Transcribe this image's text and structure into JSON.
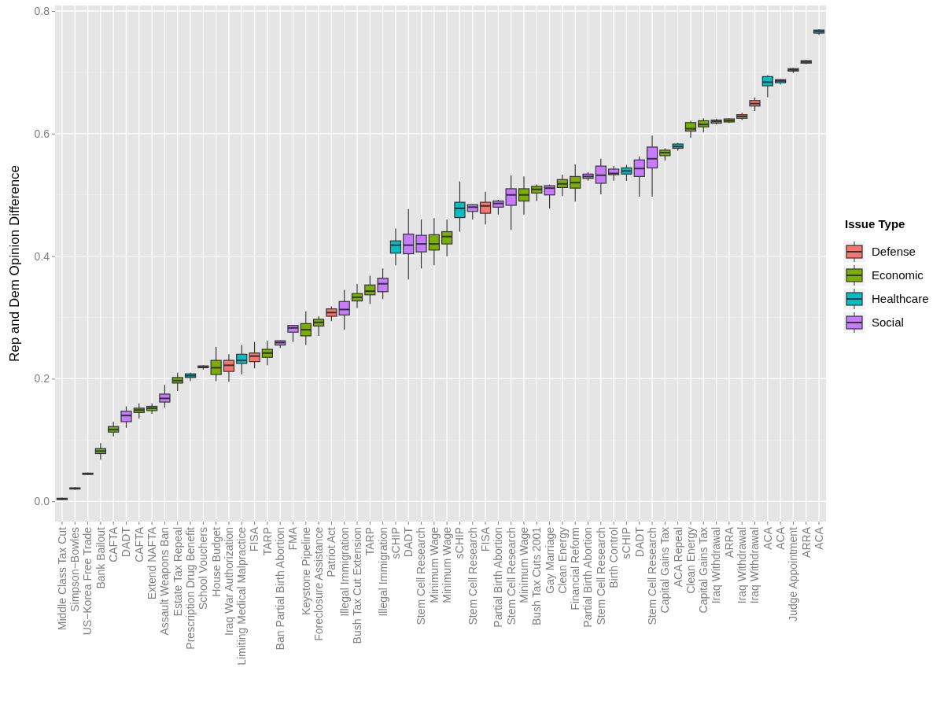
{
  "chart_data": {
    "type": "box",
    "ylabel": "Rep and Dem Opinion Difference",
    "legend_title": "Issue Type",
    "legend": "right",
    "grid": true,
    "ylim": [
      -0.033,
      0.809
    ],
    "yticks": [
      {
        "value": 0,
        "label": "0.0"
      },
      {
        "value": 0.2,
        "label": "0.2"
      },
      {
        "value": 0.4,
        "label": "0.4"
      },
      {
        "value": 0.6,
        "label": "0.6"
      },
      {
        "value": 0.8,
        "label": "0.8"
      }
    ],
    "categories": [
      "Middle Class Tax Cut",
      "Simpson−Bowles",
      "US−Korea Free Trade",
      "Bank Bailout",
      "CAFTA",
      "DADT",
      "CAFTA",
      "Extend NAFTA",
      "Assault Weapons Ban",
      "Estate Tax Repeal",
      "Prescription Drug Benefit",
      "School Vouchers",
      "House Budget",
      "Iraq War Authorization",
      "Limiting Medical Malpractice",
      "FISA",
      "TARP",
      "Ban Partial Birth Abortion",
      "FMA",
      "Keystone Pipeline",
      "Foreclosure Assistance",
      "Patriot Act",
      "Illegal Immigration",
      "Bush Tax Cut Extension",
      "TARP",
      "Illegal Immigration",
      "sCHIP",
      "DADT",
      "Stem Cell Research",
      "Minimum Wage",
      "Minimum Wage",
      "sCHIP",
      "Stem Cell Research",
      "FISA",
      "Partial Birth Abortion",
      "Stem Cell Research",
      "Minimum Wage",
      "Bush Tax Cuts 2001",
      "Gay Marriage",
      "Clean Energy",
      "Financial Reform",
      "Partial Birth Abortion",
      "Stem Cell Research",
      "Birth Control",
      "sCHIP",
      "DADT",
      "Stem Cell Research",
      "Capital Gains Tax",
      "ACA Repeal",
      "Clean Energy",
      "Capital Gains Tax",
      "Iraq Withdrawal",
      "ARRA",
      "Iraq Withdrawal",
      "Iraq Withdrawal",
      "ACA",
      "ACA",
      "Judge Appointment",
      "ARRA",
      "ACA"
    ],
    "series": [
      {
        "name": "Defense",
        "color": "#f8766d",
        "boxes": [
          null,
          null,
          null,
          null,
          null,
          null,
          null,
          null,
          null,
          null,
          null,
          null,
          null,
          {
            "low": 0.195,
            "q1": 0.212,
            "median": 0.222,
            "q3": 0.23,
            "high": 0.24
          },
          null,
          {
            "low": 0.217,
            "q1": 0.228,
            "median": 0.237,
            "q3": 0.242,
            "high": 0.26
          },
          null,
          null,
          null,
          null,
          null,
          {
            "low": 0.294,
            "q1": 0.302,
            "median": 0.308,
            "q3": 0.314,
            "high": 0.318
          },
          null,
          null,
          null,
          null,
          null,
          null,
          null,
          null,
          null,
          null,
          null,
          {
            "low": 0.452,
            "q1": 0.47,
            "median": 0.482,
            "q3": 0.488,
            "high": 0.505
          },
          null,
          null,
          null,
          null,
          null,
          null,
          null,
          null,
          null,
          null,
          null,
          null,
          null,
          null,
          null,
          null,
          null,
          {
            "low": 0.615,
            "q1": 0.617,
            "median": 0.62,
            "q3": 0.622,
            "high": 0.624
          },
          null,
          {
            "low": 0.622,
            "q1": 0.625,
            "median": 0.628,
            "q3": 0.631,
            "high": 0.634
          },
          {
            "low": 0.637,
            "q1": 0.645,
            "median": 0.649,
            "q3": 0.654,
            "high": 0.659
          },
          null,
          null,
          null,
          null,
          null
        ]
      },
      {
        "name": "Economic",
        "color": "#7cae00",
        "boxes": [
          {
            "low": 0.002,
            "q1": 0.003,
            "median": 0.004,
            "q3": 0.005,
            "high": 0.006
          },
          {
            "low": 0.019,
            "q1": 0.02,
            "median": 0.021,
            "q3": 0.022,
            "high": 0.023
          },
          {
            "low": 0.043,
            "q1": 0.044,
            "median": 0.045,
            "q3": 0.046,
            "high": 0.047
          },
          {
            "low": 0.068,
            "q1": 0.078,
            "median": 0.082,
            "q3": 0.086,
            "high": 0.095
          },
          {
            "low": 0.106,
            "q1": 0.113,
            "median": 0.117,
            "q3": 0.122,
            "high": 0.13
          },
          null,
          {
            "low": 0.135,
            "q1": 0.145,
            "median": 0.149,
            "q3": 0.152,
            "high": 0.16
          },
          {
            "low": 0.143,
            "q1": 0.148,
            "median": 0.152,
            "q3": 0.155,
            "high": 0.16
          },
          null,
          {
            "low": 0.18,
            "q1": 0.193,
            "median": 0.197,
            "q3": 0.202,
            "high": 0.21
          },
          null,
          null,
          {
            "low": 0.196,
            "q1": 0.207,
            "median": 0.218,
            "q3": 0.23,
            "high": 0.252
          },
          null,
          null,
          null,
          {
            "low": 0.222,
            "q1": 0.235,
            "median": 0.242,
            "q3": 0.248,
            "high": 0.262
          },
          null,
          null,
          {
            "low": 0.255,
            "q1": 0.27,
            "median": 0.28,
            "q3": 0.29,
            "high": 0.31
          },
          {
            "low": 0.27,
            "q1": 0.286,
            "median": 0.292,
            "q3": 0.297,
            "high": 0.302
          },
          null,
          null,
          {
            "low": 0.315,
            "q1": 0.327,
            "median": 0.333,
            "q3": 0.339,
            "high": 0.355
          },
          {
            "low": 0.322,
            "q1": 0.337,
            "median": 0.343,
            "q3": 0.353,
            "high": 0.368
          },
          null,
          null,
          null,
          null,
          {
            "low": 0.385,
            "q1": 0.41,
            "median": 0.42,
            "q3": 0.435,
            "high": 0.462
          },
          {
            "low": 0.4,
            "q1": 0.42,
            "median": 0.432,
            "q3": 0.44,
            "high": 0.46
          },
          null,
          null,
          null,
          null,
          null,
          {
            "low": 0.468,
            "q1": 0.49,
            "median": 0.5,
            "q3": 0.51,
            "high": 0.53
          },
          {
            "low": 0.49,
            "q1": 0.503,
            "median": 0.509,
            "q3": 0.514,
            "high": 0.517
          },
          null,
          {
            "low": 0.498,
            "q1": 0.512,
            "median": 0.518,
            "q3": 0.525,
            "high": 0.533
          },
          {
            "low": 0.489,
            "q1": 0.511,
            "median": 0.52,
            "q3": 0.53,
            "high": 0.55
          },
          null,
          null,
          null,
          null,
          null,
          null,
          {
            "low": 0.556,
            "q1": 0.564,
            "median": 0.569,
            "q3": 0.573,
            "high": 0.576
          },
          null,
          {
            "low": 0.593,
            "q1": 0.604,
            "median": 0.608,
            "q3": 0.618,
            "high": 0.621
          },
          {
            "low": 0.602,
            "q1": 0.611,
            "median": 0.615,
            "q3": 0.621,
            "high": 0.625
          },
          null,
          {
            "low": 0.617,
            "q1": 0.619,
            "median": 0.621,
            "q3": 0.624,
            "high": 0.625
          },
          null,
          null,
          null,
          null,
          null,
          {
            "low": 0.713,
            "q1": 0.715,
            "median": 0.717,
            "q3": 0.719,
            "high": 0.72
          },
          null
        ]
      },
      {
        "name": "Healthcare",
        "color": "#00bfc4",
        "boxes": [
          null,
          null,
          null,
          null,
          null,
          null,
          null,
          null,
          null,
          null,
          {
            "low": 0.196,
            "q1": 0.202,
            "median": 0.205,
            "q3": 0.208,
            "high": 0.21
          },
          null,
          null,
          null,
          {
            "low": 0.207,
            "q1": 0.225,
            "median": 0.23,
            "q3": 0.24,
            "high": 0.255
          },
          null,
          null,
          null,
          null,
          null,
          null,
          null,
          null,
          null,
          null,
          null,
          {
            "low": 0.385,
            "q1": 0.405,
            "median": 0.418,
            "q3": 0.425,
            "high": 0.445
          },
          null,
          null,
          null,
          null,
          {
            "low": 0.44,
            "q1": 0.463,
            "median": 0.478,
            "q3": 0.488,
            "high": 0.522
          },
          null,
          null,
          null,
          null,
          null,
          null,
          null,
          null,
          null,
          null,
          null,
          null,
          {
            "low": 0.523,
            "q1": 0.534,
            "median": 0.539,
            "q3": 0.544,
            "high": 0.549
          },
          null,
          null,
          null,
          {
            "low": 0.572,
            "q1": 0.576,
            "median": 0.579,
            "q3": 0.583,
            "high": 0.585
          },
          null,
          null,
          null,
          null,
          null,
          null,
          {
            "low": 0.659,
            "q1": 0.678,
            "median": 0.684,
            "q3": 0.693,
            "high": 0.695
          },
          {
            "low": 0.68,
            "q1": 0.683,
            "median": 0.686,
            "q3": 0.688,
            "high": 0.689
          },
          null,
          null,
          {
            "low": 0.761,
            "q1": 0.764,
            "median": 0.767,
            "q3": 0.769,
            "high": 0.77
          }
        ]
      },
      {
        "name": "Social",
        "color": "#c77cff",
        "boxes": [
          null,
          null,
          null,
          null,
          null,
          {
            "low": 0.12,
            "q1": 0.13,
            "median": 0.14,
            "q3": 0.147,
            "high": 0.155
          },
          null,
          null,
          {
            "low": 0.153,
            "q1": 0.162,
            "median": 0.168,
            "q3": 0.175,
            "high": 0.19
          },
          null,
          null,
          {
            "low": 0.215,
            "q1": 0.218,
            "median": 0.219,
            "q3": 0.221,
            "high": 0.222
          },
          null,
          null,
          null,
          null,
          null,
          {
            "low": 0.25,
            "q1": 0.255,
            "median": 0.259,
            "q3": 0.262,
            "high": 0.263
          },
          {
            "low": 0.26,
            "q1": 0.276,
            "median": 0.283,
            "q3": 0.287,
            "high": 0.288
          },
          null,
          null,
          null,
          {
            "low": 0.28,
            "q1": 0.304,
            "median": 0.313,
            "q3": 0.326,
            "high": 0.345
          },
          null,
          null,
          {
            "low": 0.33,
            "q1": 0.342,
            "median": 0.355,
            "q3": 0.364,
            "high": 0.38
          },
          null,
          {
            "low": 0.362,
            "q1": 0.404,
            "median": 0.418,
            "q3": 0.436,
            "high": 0.477
          },
          {
            "low": 0.38,
            "q1": 0.407,
            "median": 0.42,
            "q3": 0.434,
            "high": 0.46
          },
          null,
          null,
          null,
          {
            "low": 0.46,
            "q1": 0.473,
            "median": 0.48,
            "q3": 0.484,
            "high": 0.485
          },
          null,
          {
            "low": 0.468,
            "q1": 0.48,
            "median": 0.486,
            "q3": 0.49,
            "high": 0.492
          },
          {
            "low": 0.443,
            "q1": 0.483,
            "median": 0.5,
            "q3": 0.51,
            "high": 0.532
          },
          null,
          null,
          {
            "low": 0.478,
            "q1": 0.5,
            "median": 0.511,
            "q3": 0.515,
            "high": 0.517
          },
          null,
          null,
          {
            "low": 0.523,
            "q1": 0.527,
            "median": 0.53,
            "q3": 0.534,
            "high": 0.537
          },
          {
            "low": 0.501,
            "q1": 0.519,
            "median": 0.532,
            "q3": 0.547,
            "high": 0.559
          },
          {
            "low": 0.523,
            "q1": 0.533,
            "median": 0.535,
            "q3": 0.542,
            "high": 0.547
          },
          null,
          {
            "low": 0.497,
            "q1": 0.53,
            "median": 0.543,
            "q3": 0.557,
            "high": 0.563
          },
          {
            "low": 0.497,
            "q1": 0.544,
            "median": 0.559,
            "q3": 0.578,
            "high": 0.597
          },
          null,
          null,
          null,
          null,
          null,
          null,
          null,
          null,
          null,
          null,
          {
            "low": 0.699,
            "q1": 0.702,
            "median": 0.704,
            "q3": 0.706,
            "high": 0.707
          },
          null,
          null
        ]
      }
    ]
  }
}
